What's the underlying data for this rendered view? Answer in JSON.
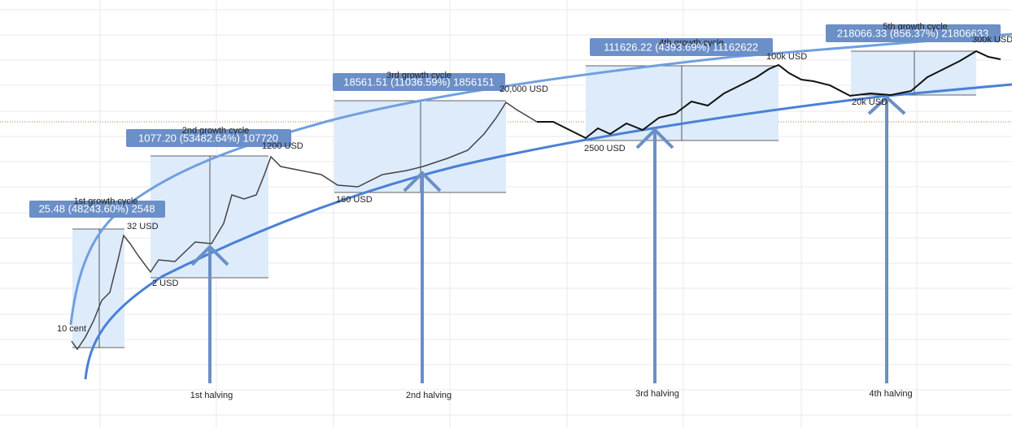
{
  "cycles": [
    {
      "title": "1st growth cycle",
      "stats": "25.48 (48243.60%) 2548"
    },
    {
      "title": "2nd growth cycle",
      "stats": "1077.20 (53482.64%) 107720"
    },
    {
      "title": "3rd growth cycle",
      "stats": "18561.51 (11036.59%) 1856151"
    },
    {
      "title": "4th growth cycle",
      "stats": "111626.22 (4393.69%) 11162622"
    },
    {
      "title": "5th growth cycle",
      "stats": "218066.33 (856.37%) 21806633"
    }
  ],
  "price_labels": [
    "10 cent",
    "32 USD",
    "2 USD",
    "1200 USD",
    "160 USD",
    "20,000 USD",
    "2500 USD",
    "100k USD",
    "20k USD",
    "300k USD"
  ],
  "halvings": [
    "1st halving",
    "2nd halving",
    "3rd halving",
    "4th halving"
  ]
}
